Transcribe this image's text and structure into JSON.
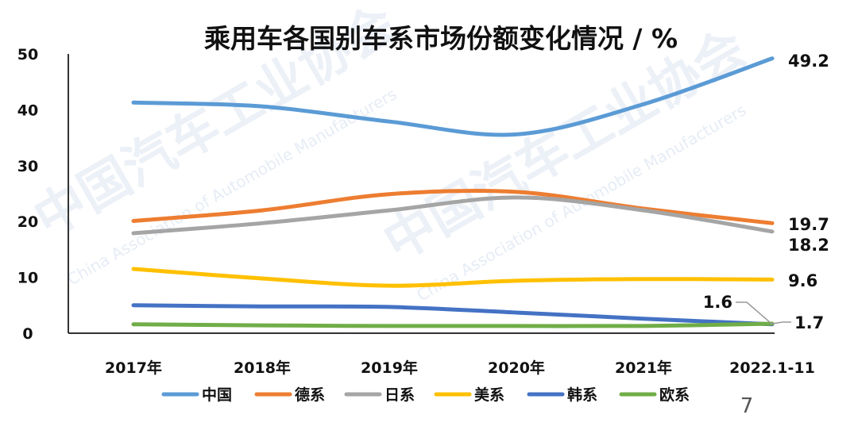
{
  "chart_data": {
    "type": "line",
    "title": "乘用车各国别车系市场份额变化情况 / %",
    "categories": [
      "2017年",
      "2018年",
      "2019年",
      "2020年",
      "2021年",
      "2022.1-11"
    ],
    "ylim": [
      0,
      50
    ],
    "yticks": [
      0,
      10,
      20,
      30,
      40,
      50
    ],
    "grid": false,
    "legend_position": "bottom",
    "series": [
      {
        "name": "中国",
        "color": "#5b9bd5",
        "values": [
          41.3,
          40.6,
          37.9,
          35.6,
          41.0,
          49.2
        ]
      },
      {
        "name": "德系",
        "color": "#ed7d31",
        "values": [
          20.1,
          22.0,
          24.9,
          25.3,
          22.3,
          19.7
        ]
      },
      {
        "name": "日系",
        "color": "#a5a5a5",
        "values": [
          17.9,
          19.7,
          22.0,
          24.3,
          22.0,
          18.2
        ]
      },
      {
        "name": "美系",
        "color": "#ffc000",
        "values": [
          11.5,
          9.8,
          8.5,
          9.4,
          9.7,
          9.6
        ]
      },
      {
        "name": "韩系",
        "color": "#4472c4",
        "values": [
          5.0,
          4.8,
          4.7,
          3.7,
          2.6,
          1.6
        ]
      },
      {
        "name": "欧系",
        "color": "#70ad47",
        "values": [
          1.6,
          1.4,
          1.3,
          1.3,
          1.3,
          1.7
        ]
      }
    ],
    "end_labels": [
      "49.2",
      "19.7",
      "18.2",
      "9.6",
      "1.6",
      "1.7"
    ]
  },
  "watermark": {
    "text": "中国汽车工业协会",
    "subtext": "China Association of Automobile Manufacturers"
  },
  "page_number": "7"
}
